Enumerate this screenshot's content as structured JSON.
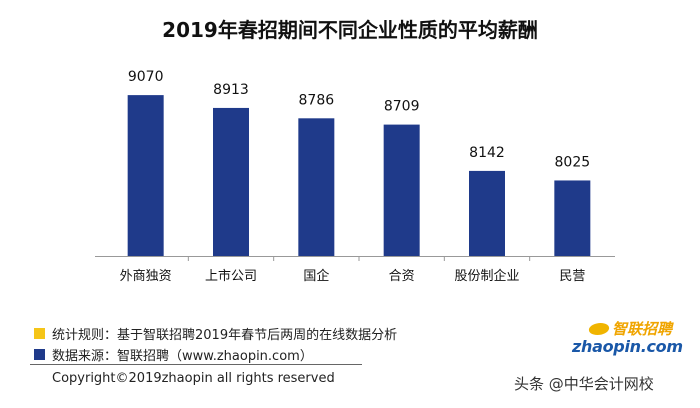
{
  "chart_data": {
    "type": "bar",
    "title": "2019年春招期间不同企业性质的平均薪酬",
    "categories": [
      "外商独资",
      "上市公司",
      "国企",
      "合资",
      "股份制企业",
      "民营"
    ],
    "values": [
      9070,
      8913,
      8786,
      8709,
      8142,
      8025
    ],
    "xlabel": "",
    "ylabel": "",
    "ylim": [
      7100,
      9500
    ],
    "grid": false,
    "legend": "none",
    "bar_color": "#1f3a8a"
  },
  "notes": [
    {
      "text": "统计规则：基于智联招聘2019年春节后两周的在线数据分析",
      "color": "#f5c518"
    },
    {
      "text": "数据来源：智联招聘（www.zhaopin.com）",
      "color": "#1f3a8a"
    }
  ],
  "copyright": "Copyright©2019zhaopin all rights reserved",
  "logo": {
    "cn": "智联招聘",
    "en": "zhaopin.com"
  },
  "watermark": "头条 @中华会计网校"
}
